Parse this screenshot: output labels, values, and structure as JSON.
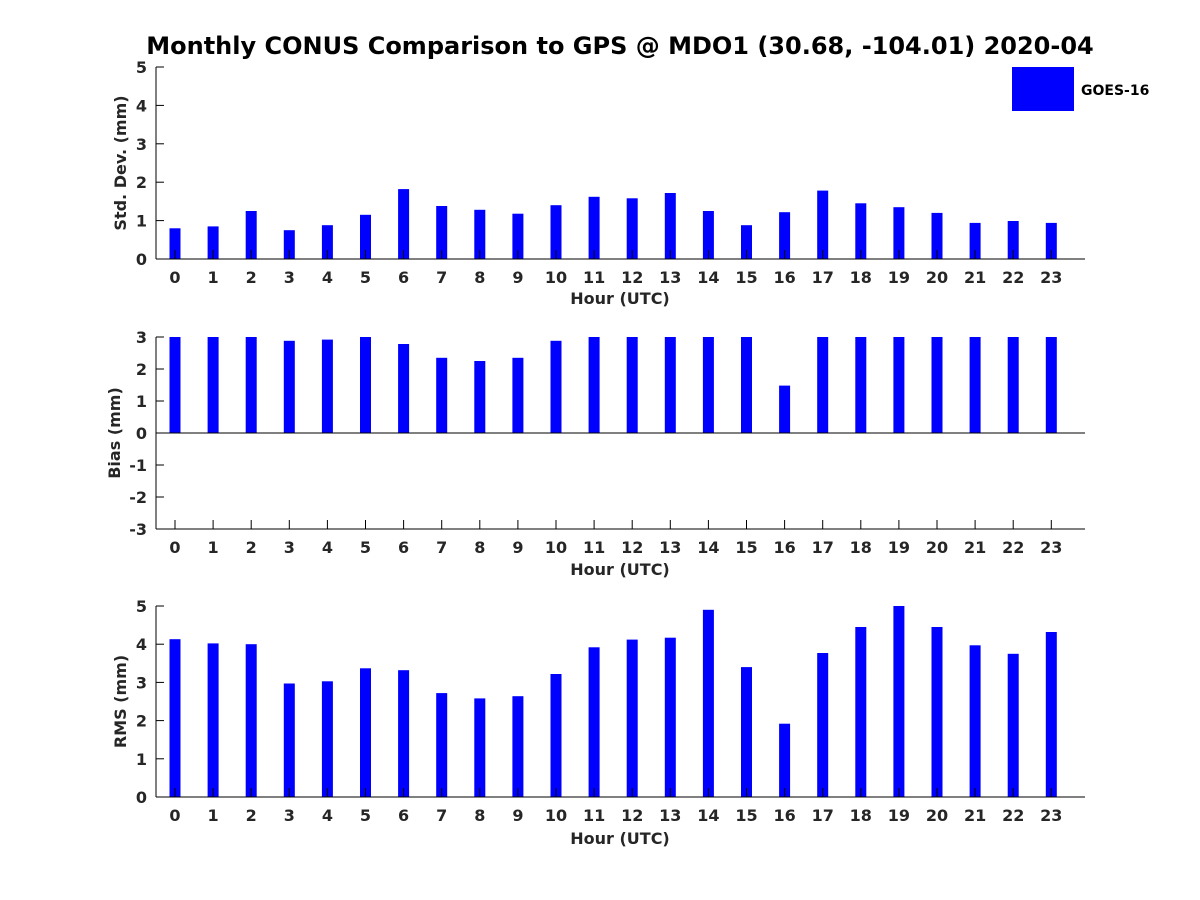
{
  "chart_data": {
    "type": "bar",
    "title": "Monthly CONUS Comparison to GPS @ MDO1 (30.68, -104.01) 2020-04",
    "legend": {
      "label": "GOES-16",
      "color": "#0000ff",
      "placement": "top-right"
    },
    "bar_color": "#0000ff",
    "categories": [
      "0",
      "1",
      "2",
      "3",
      "4",
      "5",
      "6",
      "7",
      "8",
      "9",
      "10",
      "11",
      "12",
      "13",
      "14",
      "15",
      "16",
      "17",
      "18",
      "19",
      "20",
      "21",
      "22",
      "23"
    ],
    "panels": [
      {
        "id": "std",
        "xlabel": "Hour (UTC)",
        "ylabel": "Std. Dev. (mm)",
        "ylim": [
          0,
          5
        ],
        "yticks": [
          "0",
          "1",
          "2",
          "3",
          "4",
          "5"
        ],
        "values": [
          0.8,
          0.85,
          1.25,
          0.75,
          0.88,
          1.15,
          1.82,
          1.38,
          1.28,
          1.18,
          1.4,
          1.62,
          1.58,
          1.72,
          1.25,
          0.88,
          1.22,
          1.78,
          1.45,
          1.35,
          1.2,
          0.94,
          0.99,
          0.94
        ]
      },
      {
        "id": "bias",
        "xlabel": "Hour (UTC)",
        "ylabel": "Bias (mm)",
        "ylim": [
          -3,
          3
        ],
        "yticks": [
          "-3",
          "-2",
          "-1",
          "0",
          "1",
          "2",
          "3"
        ],
        "values": [
          3.0,
          3.0,
          3.0,
          2.88,
          2.92,
          3.0,
          2.78,
          2.35,
          2.25,
          2.35,
          2.88,
          3.0,
          3.0,
          3.0,
          3.0,
          3.0,
          1.48,
          3.0,
          3.0,
          3.0,
          3.0,
          3.0,
          3.0,
          3.0
        ]
      },
      {
        "id": "rms",
        "xlabel": "Hour (UTC)",
        "ylabel": "RMS (mm)",
        "ylim": [
          0,
          5
        ],
        "yticks": [
          "0",
          "1",
          "2",
          "3",
          "4",
          "5"
        ],
        "values": [
          4.13,
          4.02,
          4.0,
          2.97,
          3.03,
          3.37,
          3.32,
          2.72,
          2.58,
          2.64,
          3.22,
          3.92,
          4.12,
          4.17,
          4.9,
          3.4,
          1.92,
          3.77,
          4.45,
          5.0,
          4.45,
          3.97,
          3.75,
          4.32
        ]
      }
    ]
  }
}
